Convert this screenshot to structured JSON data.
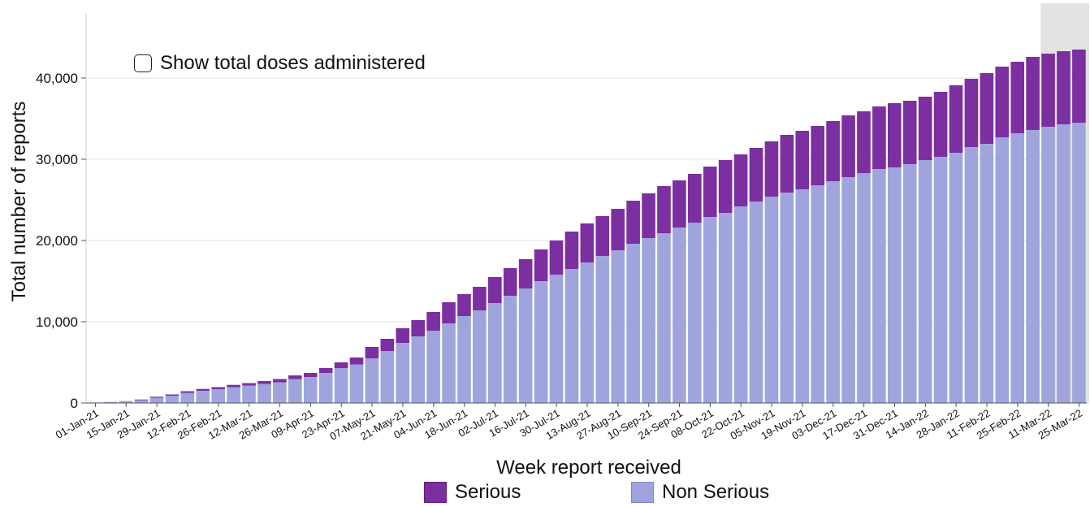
{
  "toggle": {
    "label": "Show total doses administered",
    "checked": false
  },
  "chart_data": {
    "type": "bar",
    "stacked": true,
    "xlabel": "Week report received",
    "ylabel": "Total number of reports",
    "ylim": [
      0,
      48000
    ],
    "yticks": [
      0,
      10000,
      20000,
      30000,
      40000
    ],
    "ytick_labels": [
      "0",
      "10,000",
      "20,000",
      "30,000",
      "40,000"
    ],
    "grid": true,
    "legend_position": "bottom",
    "colors": {
      "serious": "#7b2fa0",
      "non_serious": "#9fa5dc",
      "highlight": "#bdbdbd"
    },
    "highlight_last_weeks": 3,
    "categories": [
      "01-Jan-21",
      "08-Jan-21",
      "15-Jan-21",
      "22-Jan-21",
      "29-Jan-21",
      "05-Feb-21",
      "12-Feb-21",
      "19-Feb-21",
      "26-Feb-21",
      "05-Mar-21",
      "12-Mar-21",
      "19-Mar-21",
      "26-Mar-21",
      "02-Apr-21",
      "09-Apr-21",
      "16-Apr-21",
      "23-Apr-21",
      "30-Apr-21",
      "07-May-21",
      "14-May-21",
      "21-May-21",
      "28-May-21",
      "04-Jun-21",
      "11-Jun-21",
      "18-Jun-21",
      "25-Jun-21",
      "02-Jul-21",
      "09-Jul-21",
      "16-Jul-21",
      "23-Jul-21",
      "30-Jul-21",
      "06-Aug-21",
      "13-Aug-21",
      "20-Aug-21",
      "27-Aug-21",
      "03-Sep-21",
      "10-Sep-21",
      "17-Sep-21",
      "24-Sep-21",
      "01-Oct-21",
      "08-Oct-21",
      "15-Oct-21",
      "22-Oct-21",
      "29-Oct-21",
      "05-Nov-21",
      "12-Nov-21",
      "19-Nov-21",
      "26-Nov-21",
      "03-Dec-21",
      "10-Dec-21",
      "17-Dec-21",
      "24-Dec-21",
      "31-Dec-21",
      "07-Jan-22",
      "14-Jan-22",
      "21-Jan-22",
      "28-Jan-22",
      "04-Feb-22",
      "11-Feb-22",
      "18-Feb-22",
      "25-Feb-22",
      "04-Mar-22",
      "11-Mar-22",
      "18-Mar-22",
      "25-Mar-22"
    ],
    "tick_labels": [
      "01-Jan-21",
      "15-Jan-21",
      "29-Jan-21",
      "12-Feb-21",
      "26-Feb-21",
      "12-Mar-21",
      "26-Mar-21",
      "09-Apr-21",
      "23-Apr-21",
      "07-May-21",
      "21-May-21",
      "04-Jun-21",
      "18-Jun-21",
      "02-Jul-21",
      "16-Jul-21",
      "30-Jul-21",
      "13-Aug-21",
      "27-Aug-21",
      "10-Sep-21",
      "24-Sep-21",
      "08-Oct-21",
      "22-Oct-21",
      "05-Nov-21",
      "19-Nov-21",
      "03-Dec-21",
      "17-Dec-21",
      "31-Dec-21",
      "14-Jan-22",
      "28-Jan-22",
      "11-Feb-22",
      "25-Feb-22",
      "11-Mar-22",
      "25-Mar-22"
    ],
    "series": [
      {
        "name": "Non Serious",
        "key": "non_serious",
        "values": [
          50,
          100,
          180,
          350,
          650,
          900,
          1250,
          1500,
          1700,
          1950,
          2150,
          2350,
          2550,
          2950,
          3200,
          3700,
          4300,
          4750,
          5500,
          6400,
          7400,
          8200,
          8900,
          9800,
          10700,
          11400,
          12300,
          13200,
          14100,
          15000,
          15800,
          16500,
          17300,
          18100,
          18800,
          19600,
          20300,
          20900,
          21600,
          22200,
          22900,
          23400,
          24200,
          24800,
          25400,
          25900,
          26300,
          26800,
          27300,
          27800,
          28300,
          28800,
          29000,
          29400,
          29900,
          30300,
          30800,
          31500,
          31900,
          32700,
          33200,
          33600,
          34000,
          34300,
          34500
        ]
      },
      {
        "name": "Serious",
        "key": "serious",
        "values": [
          10,
          20,
          40,
          80,
          120,
          150,
          200,
          230,
          250,
          280,
          300,
          350,
          400,
          450,
          500,
          600,
          700,
          850,
          1400,
          1500,
          1800,
          2000,
          2300,
          2600,
          2700,
          2900,
          3200,
          3400,
          3600,
          3900,
          4200,
          4600,
          4800,
          4900,
          5100,
          5300,
          5500,
          5800,
          5800,
          6000,
          6200,
          6500,
          6400,
          6600,
          6800,
          7100,
          7200,
          7300,
          7400,
          7600,
          7600,
          7700,
          7900,
          7800,
          7800,
          8000,
          8300,
          8400,
          8700,
          8700,
          8800,
          9000,
          9000,
          9000,
          9000
        ]
      }
    ]
  }
}
